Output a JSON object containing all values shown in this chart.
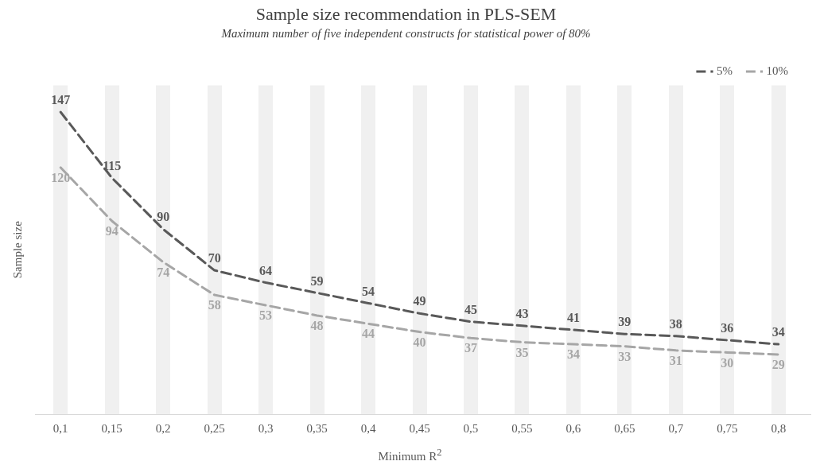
{
  "chart_data": {
    "type": "line",
    "title": "Sample size recommendation in PLS-SEM",
    "subtitle": "Maximum number of five independent constructs for statistical power of 80%",
    "xlabel": "Minimum  R$^{2}$",
    "ylabel": "Sample size",
    "categories": [
      "0,1",
      "0,15",
      "0,2",
      "0,25",
      "0,3",
      "0,35",
      "0,4",
      "0,45",
      "0,5",
      "0,55",
      "0,6",
      "0,65",
      "0,7",
      "0,75",
      "0,8"
    ],
    "series": [
      {
        "name": "5%",
        "color": "#595959",
        "values": [
          147,
          115,
          90,
          70,
          64,
          59,
          54,
          49,
          45,
          43,
          41,
          39,
          38,
          36,
          34
        ]
      },
      {
        "name": "10%",
        "color": "#a6a6a6",
        "values": [
          120,
          94,
          74,
          58,
          53,
          48,
          44,
          40,
          37,
          35,
          34,
          33,
          31,
          30,
          29
        ]
      }
    ],
    "data_labels": true,
    "grid": "x",
    "legend": "top right",
    "line_style": "dashed",
    "marker": "none",
    "tick_labels": "x"
  }
}
